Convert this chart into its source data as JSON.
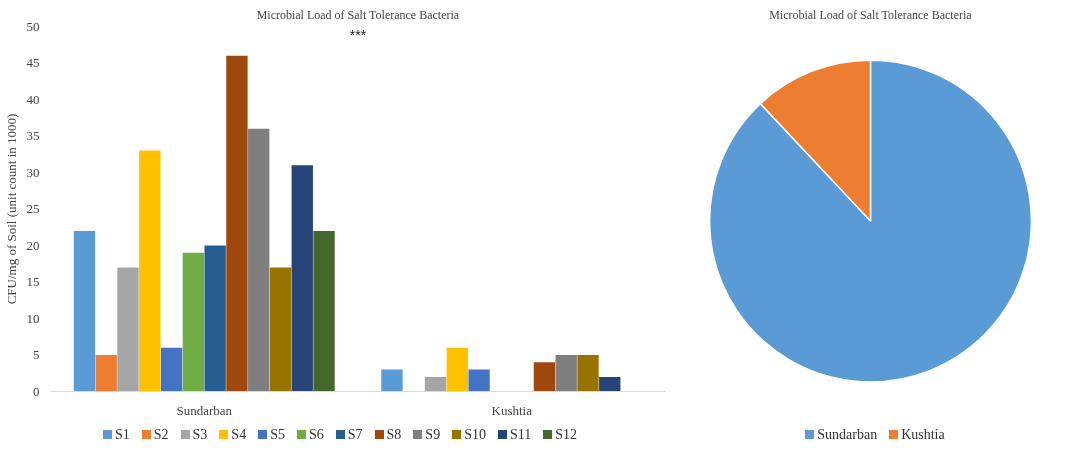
{
  "chart_data": [
    {
      "type": "bar",
      "title": "Microbial Load of Salt Tolerance Bacteria",
      "ylabel": "CFU/mg of Soil (unit count in 1000)",
      "categories": [
        "Sundarban",
        "Kushtia"
      ],
      "ylim": [
        0,
        50
      ],
      "yticks": [
        0,
        5,
        10,
        15,
        20,
        25,
        30,
        35,
        40,
        45,
        50
      ],
      "grid": false,
      "legend": "bottom",
      "annotations": [
        "***"
      ],
      "series": [
        {
          "name": "S1",
          "color": "#5b9bd5",
          "values": [
            22,
            3
          ]
        },
        {
          "name": "S2",
          "color": "#ed7d31",
          "values": [
            5,
            0
          ]
        },
        {
          "name": "S3",
          "color": "#a5a5a5",
          "values": [
            17,
            2
          ]
        },
        {
          "name": "S4",
          "color": "#ffc000",
          "values": [
            33,
            6
          ]
        },
        {
          "name": "S5",
          "color": "#4472c4",
          "values": [
            6,
            3
          ]
        },
        {
          "name": "S6",
          "color": "#70ad47",
          "values": [
            19,
            0
          ]
        },
        {
          "name": "S7",
          "color": "#255e91",
          "values": [
            20,
            0
          ]
        },
        {
          "name": "S8",
          "color": "#9e480e",
          "values": [
            46,
            4
          ]
        },
        {
          "name": "S9",
          "color": "#7f7f7f",
          "values": [
            36,
            5
          ]
        },
        {
          "name": "S10",
          "color": "#997300",
          "values": [
            17,
            5
          ]
        },
        {
          "name": "S11",
          "color": "#264478",
          "values": [
            31,
            2
          ]
        },
        {
          "name": "S12",
          "color": "#43682b",
          "values": [
            22,
            0
          ]
        }
      ]
    },
    {
      "type": "pie",
      "title": "Microbial Load of Salt Tolerance Bacteria",
      "categories": [
        "Sundarban",
        "Kushtia"
      ],
      "values": [
        88,
        12
      ],
      "colors": [
        "#5b9bd5",
        "#ed7d31"
      ],
      "legend": "bottom"
    }
  ]
}
